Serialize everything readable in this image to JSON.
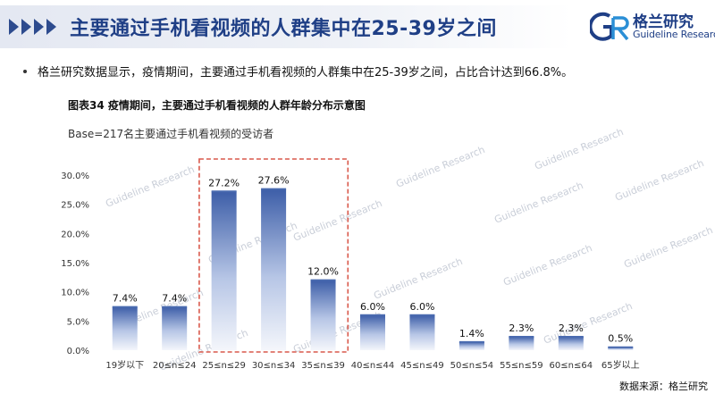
{
  "header": {
    "title": "主要通过手机看视频的人群集中在25-39岁之间"
  },
  "logo": {
    "mark_text": "GR",
    "name_cn": "格兰研究",
    "name_en": "Guideline Research"
  },
  "summary": {
    "text": "格兰研究数据显示，疫情期间，主要通过手机看视频的人群集中在25-39岁之间，占比合计达到66.8%。"
  },
  "watermark": "Guideline Research",
  "chart_data": {
    "type": "bar",
    "title": "图表34  疫情期间，主要通过手机看视频的人群年龄分布示意图",
    "base": "Base=217名主要通过手机看视频的受访者",
    "categories": [
      "19岁以下",
      "20≤n≤24",
      "25≤n≤29",
      "30≤n≤34",
      "35≤n≤39",
      "40≤n≤44",
      "45≤n≤49",
      "50≤n≤54",
      "55≤n≤59",
      "60≤n≤64",
      "65岁以上"
    ],
    "values": [
      7.4,
      7.4,
      27.2,
      27.6,
      12.0,
      6.0,
      6.0,
      1.4,
      2.3,
      2.3,
      0.5
    ],
    "value_labels": [
      "7.4%",
      "7.4%",
      "27.2%",
      "27.6%",
      "12.0%",
      "6.0%",
      "6.0%",
      "1.4%",
      "2.3%",
      "2.3%",
      "0.5%"
    ],
    "yticks": [
      "0.0%",
      "5.0%",
      "10.0%",
      "15.0%",
      "20.0%",
      "25.0%",
      "30.0%"
    ],
    "ylim": [
      0,
      30
    ],
    "highlight_categories": [
      "25≤n≤29",
      "30≤n≤34",
      "35≤n≤39"
    ],
    "bar_color": "#4a6bb0",
    "highlight_box_color": "#d9594c",
    "grid": false
  },
  "footer": {
    "source": "数据来源：格兰研究"
  }
}
